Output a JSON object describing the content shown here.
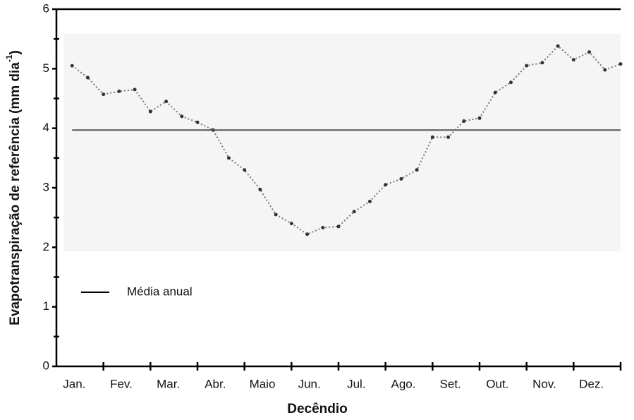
{
  "chart_data": {
    "type": "line",
    "y_label": "Evapotranspiração de referência (mm dia",
    "y_label_sup": "-1",
    "y_label_end": ")",
    "x_label": "Decêndio",
    "categories": [
      "Jan.",
      "Fev.",
      "Mar.",
      "Abr.",
      "Maio",
      "Jun.",
      "Jul.",
      "Ago.",
      "Set.",
      "Out.",
      "Nov.",
      "Dez."
    ],
    "values": [
      [
        5.05,
        4.85,
        4.57
      ],
      [
        4.62,
        4.65,
        4.28
      ],
      [
        4.45,
        4.2,
        4.1
      ],
      [
        3.97,
        3.5,
        3.3
      ],
      [
        2.97,
        2.55,
        2.4
      ],
      [
        2.22,
        2.33,
        2.35
      ],
      [
        2.6,
        2.77,
        3.05
      ],
      [
        3.15,
        3.3,
        3.85
      ],
      [
        3.85,
        4.12,
        4.17
      ],
      [
        4.6,
        4.77,
        5.05
      ],
      [
        5.1,
        5.38,
        5.15
      ],
      [
        5.28,
        4.98,
        5.08
      ]
    ],
    "color": "#777777",
    "reference": {
      "name": "Média anual",
      "value": 3.97,
      "color": "#555555"
    },
    "ylim": [
      0,
      6
    ],
    "yticks": [
      0,
      1,
      2,
      3,
      4,
      5,
      6
    ]
  }
}
